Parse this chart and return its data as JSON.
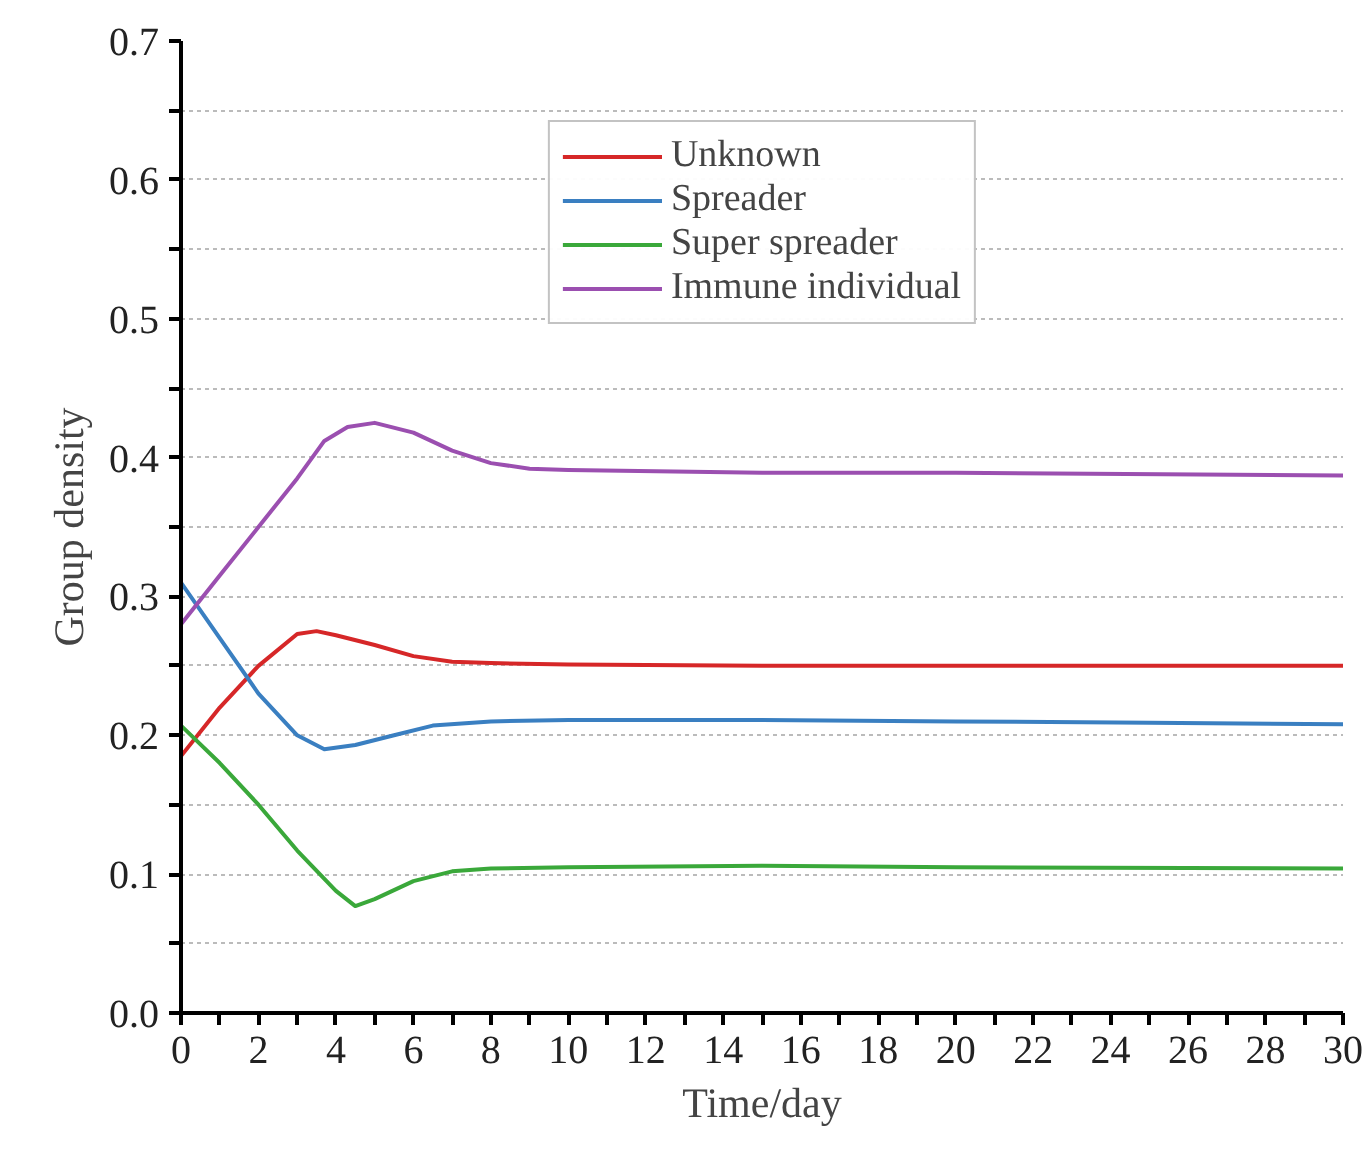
{
  "chart_data": {
    "type": "line",
    "xlabel": "Time/day",
    "ylabel": "Group density",
    "xlim": [
      0,
      30
    ],
    "ylim": [
      0,
      0.7
    ],
    "xticks": [
      0,
      {
        "value": 1,
        "label": null
      },
      2,
      {
        "value": 3,
        "label": null
      },
      4,
      {
        "value": 5,
        "label": null
      },
      6,
      {
        "value": 7,
        "label": null
      },
      8,
      {
        "value": 9,
        "label": null
      },
      10,
      {
        "value": 11,
        "label": null
      },
      12,
      {
        "value": 13,
        "label": null
      },
      14,
      {
        "value": 15,
        "label": null
      },
      16,
      {
        "value": 17,
        "label": null
      },
      18,
      {
        "value": 19,
        "label": null
      },
      20,
      {
        "value": 21,
        "label": null
      },
      22,
      {
        "value": 23,
        "label": null
      },
      24,
      {
        "value": 25,
        "label": null
      },
      26,
      {
        "value": 27,
        "label": null
      },
      28,
      {
        "value": 29,
        "label": null
      },
      30
    ],
    "yticks": [
      {
        "value": 0,
        "label": "0.0"
      },
      {
        "value": 0.05,
        "label": null
      },
      0.1,
      {
        "value": 0.15,
        "label": null
      },
      0.2,
      {
        "value": 0.25,
        "label": null
      },
      0.3,
      {
        "value": 0.35,
        "label": null
      },
      0.4,
      {
        "value": 0.45,
        "label": null
      },
      0.5,
      {
        "value": 0.55,
        "label": null
      },
      0.6,
      {
        "value": 0.65,
        "label": null
      },
      0.7
    ],
    "grid": "y",
    "legend": "top",
    "marker": "none",
    "line_style": "solid",
    "series": [
      {
        "name": "Unknown",
        "color": "#d62728",
        "x": [
          0,
          1,
          2,
          3,
          3.5,
          4,
          5,
          6,
          7,
          8,
          10,
          15,
          20,
          30
        ],
        "values": [
          0.185,
          0.22,
          0.25,
          0.273,
          0.275,
          0.272,
          0.265,
          0.257,
          0.253,
          0.252,
          0.251,
          0.25,
          0.25,
          0.25
        ]
      },
      {
        "name": "Spreader",
        "color": "#3a7fc1",
        "x": [
          0,
          1,
          2,
          3,
          3.7,
          4.5,
          5.5,
          6.5,
          8,
          10,
          15,
          20,
          25,
          30
        ],
        "values": [
          0.31,
          0.27,
          0.23,
          0.2,
          0.19,
          0.193,
          0.2,
          0.207,
          0.21,
          0.211,
          0.211,
          0.21,
          0.209,
          0.208
        ]
      },
      {
        "name": "Super spreader",
        "color": "#3aa83a",
        "x": [
          0,
          1,
          2,
          3,
          4,
          4.5,
          5,
          6,
          7,
          8,
          10,
          15,
          20,
          30
        ],
        "values": [
          0.207,
          0.18,
          0.15,
          0.117,
          0.088,
          0.077,
          0.082,
          0.095,
          0.102,
          0.104,
          0.105,
          0.106,
          0.105,
          0.104
        ]
      },
      {
        "name": "Immune individual",
        "color": "#9b4fb0",
        "x": [
          0,
          1,
          2,
          3,
          3.7,
          4.3,
          5,
          6,
          7,
          8,
          9,
          10,
          15,
          20,
          30
        ],
        "values": [
          0.28,
          0.315,
          0.35,
          0.385,
          0.412,
          0.422,
          0.425,
          0.418,
          0.405,
          0.396,
          0.392,
          0.391,
          0.389,
          0.389,
          0.387
        ]
      }
    ]
  }
}
